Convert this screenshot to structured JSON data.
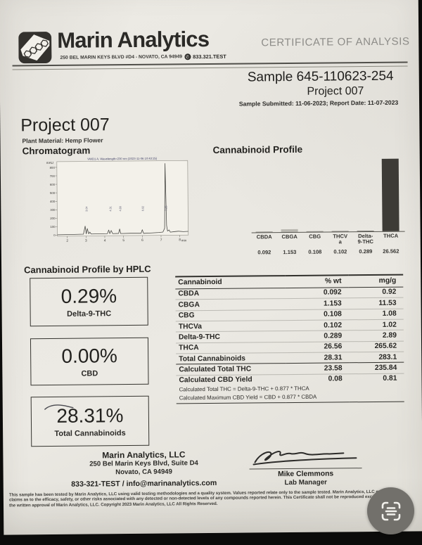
{
  "header": {
    "brand": "Marin Analytics",
    "brand_address": "250 BEL MARIN KEYS BLVD #D4 - NOVATO, CA 94949",
    "brand_phone": "833.321.TEST",
    "phone_glyph": "✆",
    "certificate_title": "CERTIFICATE OF ANALYSIS"
  },
  "sample": {
    "sample_line": "Sample 645-110623-254",
    "project_line": "Project 007",
    "dates_line": "Sample Submitted: 11-06-2023;  Report Date: 11-07-2023"
  },
  "project": {
    "title": "Project 007",
    "plant_material": "Plant Material: Hemp Flower",
    "chromatogram_heading": "Chromatogram",
    "profile_heading": "Cannabinoid Profile",
    "hplc_heading": "Cannabinoid Profile by HPLC"
  },
  "chart_data": [
    {
      "type": "bar",
      "title": "Cannabinoid Profile",
      "categories": [
        "CBDA",
        "CBGA",
        "CBG",
        "THCVa",
        "Delta-9-THC",
        "THCA"
      ],
      "label_lines": [
        [
          "CBDA"
        ],
        [
          "CBGA"
        ],
        [
          "CBG"
        ],
        [
          "THCV",
          "a"
        ],
        [
          "Delta-",
          "9-THC"
        ],
        [
          "THCA"
        ]
      ],
      "values": [
        0.092,
        1.153,
        0.108,
        0.102,
        0.289,
        26.562
      ],
      "value_labels": [
        "0.092",
        "1.153",
        "0.108",
        "0.102",
        "0.289",
        "26.562"
      ],
      "bar_colors": [
        "#97958f",
        "#b8b6af",
        "#97958f",
        "#97958f",
        "#7d7b75",
        "#3d3b36"
      ],
      "ylim": [
        0,
        26.562
      ],
      "grid": false,
      "legend": false
    },
    {
      "type": "line",
      "title": "VWD1 A, Wavelength=230 nm (2023-11-06 10:43:25)",
      "xlabel": "min",
      "ylabel": "mAU",
      "x_ticks": [
        2,
        3,
        4,
        5,
        6,
        7,
        8
      ],
      "y_ticks": [
        800,
        700,
        600,
        500,
        400,
        300,
        200,
        100,
        0
      ],
      "peaks": [
        {
          "rt": 3.0,
          "mAU": 90,
          "label": "3.04"
        },
        {
          "rt": 3.2,
          "mAU": 60
        },
        {
          "rt": 4.3,
          "mAU": 45,
          "label": "4.31"
        },
        {
          "rt": 4.5,
          "mAU": 40
        },
        {
          "rt": 4.8,
          "mAU": 55,
          "label": "4.80"
        },
        {
          "rt": 6.0,
          "mAU": 45,
          "label": "6.02"
        },
        {
          "rt": 7.25,
          "mAU": 790,
          "label": "7.25"
        }
      ]
    }
  ],
  "hplc_boxes": [
    {
      "value": "0.29%",
      "label": "Delta-9-THC"
    },
    {
      "value": "0.00%",
      "label": "CBD"
    },
    {
      "value": "28.31%",
      "label": "Total Cannabinoids"
    }
  ],
  "table": {
    "headers": [
      "Cannabinoid",
      "% wt",
      "mg/g"
    ],
    "body": [
      [
        "CBDA",
        "0.092",
        "0.92"
      ],
      [
        "CBGA",
        "1.153",
        "11.53"
      ],
      [
        "CBG",
        "0.108",
        "1.08"
      ],
      [
        "THCVa",
        "0.102",
        "1.02"
      ],
      [
        "Delta-9-THC",
        "0.289",
        "2.89"
      ],
      [
        "THCA",
        "26.56",
        "265.62"
      ]
    ],
    "total": [
      "Total Cannabinoids",
      "28.31",
      "283.1"
    ],
    "calcs": [
      [
        "Calculated Total THC",
        "23.58",
        "235.84"
      ],
      [
        "Calculated CBD Yield",
        "0.08",
        "0.81"
      ]
    ],
    "footnotes": [
      "Calculated Total THC = Delta-9-THC + 0.877 * THCA",
      "Calculated Maximum CBD Yield = CBD + 0.877 * CBDA"
    ]
  },
  "footer": {
    "company": "Marin Analytics, LLC",
    "address1": "250 Bel Marin Keys Blvd, Suite D4",
    "address2": "Novato, CA 94949",
    "contact": "833-321-TEST / info@marinanalytics.com",
    "signer_name": "Mike Clemmons",
    "signer_title": "Lab Manager",
    "disclaimer_line1": "This sample has been tested by Marin Analytics, LLC using valid testing methodologies and a quality system.  Values reported relate only to the sample tested.  Marin Analytics, LLC makes no",
    "disclaimer_line2": "claims as to the efficacy, safety, or other risks associated with any detected or non-detected levels of any compounds reported herein.  This Certificate shall not be reproduced except in full, with",
    "disclaimer_line3": "the written approval of Marin Analytics, LLC.      Copyright 2023 Marin Analytics, LLC All Rights Reserved."
  },
  "colors": {
    "paper": "#e9e7e1",
    "ink": "#23221f",
    "certificate_gray": "#8d8c88",
    "bar_dark": "#3d3b36",
    "scan_button_gray": "#72706b"
  }
}
